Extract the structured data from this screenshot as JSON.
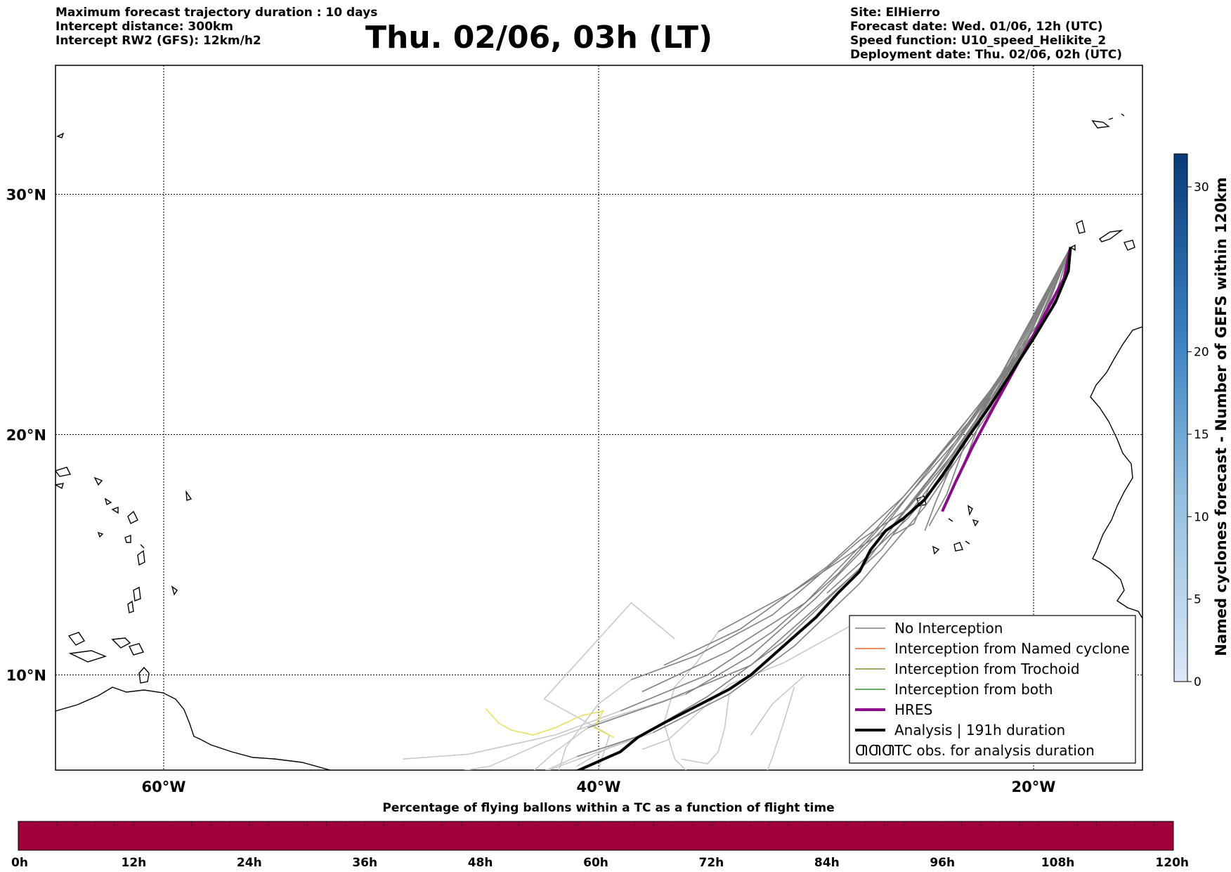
{
  "header_left": {
    "line1": "Maximum forecast trajectory duration : 10 days",
    "line2": "Intercept distance: 300km",
    "line3": "Intercept RW2 (GFS):  12km/h2"
  },
  "title": "Thu. 02/06, 03h (LT)",
  "header_right": {
    "site": "Site: ElHierro",
    "forecast_date": "Forecast date: Wed. 01/06, 12h (UTC)",
    "speed_function": "Speed function: U10_speed_Helikite_2",
    "deployment_date": "Deployment date: Thu. 02/06, 02h (UTC)"
  },
  "map": {
    "lon_range": [
      -65,
      15
    ],
    "lat_range": [
      5.4,
      34.7
    ],
    "lon_ticks": [
      {
        "value": -60,
        "label": "60°W"
      },
      {
        "value": -40,
        "label": "40°W"
      },
      {
        "value": -20,
        "label": "20°W"
      }
    ],
    "lat_ticks": [
      {
        "value": 30,
        "label": "30°N"
      },
      {
        "value": 20,
        "label": "20°N"
      },
      {
        "value": 10,
        "label": "10°N"
      }
    ],
    "colors": {
      "no_interception": "#808080",
      "named_cyclone": "#e8692b",
      "trochoid": "#808a2a",
      "both": "#2f8f2f",
      "hres": "#8b0a8b",
      "analysis": "#000000",
      "faded": "#c8c8c8",
      "yellow": "#e8e060"
    }
  },
  "legend": {
    "items": [
      {
        "label": "No Interception",
        "style": "no_interception"
      },
      {
        "label": "Interception from Named cyclone",
        "style": "named_cyclone"
      },
      {
        "label": "Interception from Trochoid",
        "style": "trochoid"
      },
      {
        "label": "Interception from both",
        "style": "both"
      },
      {
        "label": "HRES",
        "style": "hres"
      },
      {
        "label": "Analysis | 191h duration",
        "style": "analysis"
      },
      {
        "label": "TC obs. for analysis duration",
        "style": "tc_obs"
      }
    ],
    "tc_symbol": "ƢƢƢ"
  },
  "colorbar_right": {
    "label": "Named cyclones forecast - Number of GEFS within 120km",
    "ticks": [
      0,
      5,
      10,
      15,
      20,
      30
    ],
    "range": [
      0,
      32
    ],
    "color_low": "#dbe8f6",
    "color_high": "#0a3a78"
  },
  "bottom_bar": {
    "title": "Percentage of flying ballons within a TC as a function of flight time",
    "ticks": [
      "0h",
      "12h",
      "24h",
      "36h",
      "48h",
      "60h",
      "72h",
      "84h",
      "96h",
      "108h",
      "120h"
    ],
    "fill_color": "#a0003c"
  }
}
